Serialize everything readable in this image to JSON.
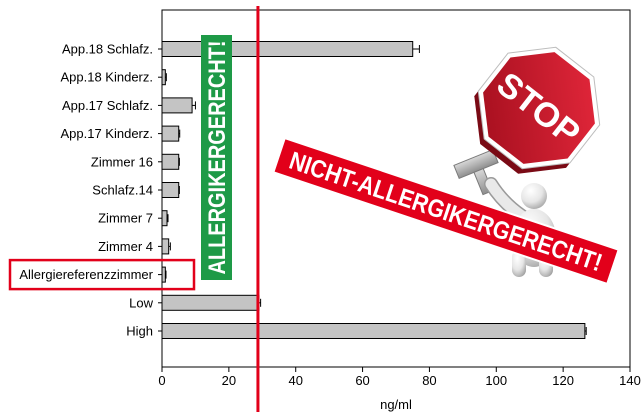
{
  "chart_data": {
    "type": "bar",
    "orientation": "horizontal",
    "categories": [
      "App.18 Schlafz.",
      "App.18 Kinderz.",
      "App.17 Schlafz.",
      "App.17 Kinderz.",
      "Zimmer 16",
      "Schlafz.14",
      "Zimmer 7",
      "Zimmer 4",
      "Allergiereferenzzimmer",
      "Low",
      "High"
    ],
    "values": [
      75,
      1,
      9,
      5,
      5,
      5,
      1.5,
      2,
      1,
      29,
      126.5
    ],
    "error": [
      2,
      0.3,
      1,
      0.3,
      0.2,
      0.2,
      0.3,
      0.5,
      0.2,
      0.5,
      0.4
    ],
    "xlabel": "ng/ml",
    "xlim": [
      0,
      140
    ],
    "xticks": [
      0,
      20,
      40,
      60,
      80,
      100,
      120,
      140
    ],
    "threshold": 28.7,
    "highlighted": [
      false,
      false,
      false,
      false,
      false,
      false,
      false,
      false,
      true,
      false,
      false
    ],
    "grid": false,
    "legend": "none"
  },
  "annotations": {
    "allergy_friendly_label": "ALLERGIKERGERECHT!",
    "not_allergy_friendly_label": "NICHT-ALLERGIKERGERECHT!",
    "stop_sign_text": "STOP"
  },
  "colors": {
    "bar_fill": "#c4c4c4",
    "bar_stroke": "#000000",
    "threshold_line": "#e2001a",
    "highlight_box": "#e2001a",
    "allergy_friendly_badge": "#1e9a47",
    "not_allergy_friendly_banner": "#e2001a",
    "stop_sign": "#c8102e"
  },
  "icons": {
    "stop_sign": "stop-sign-icon",
    "figure": "person-holding-sign-icon"
  }
}
